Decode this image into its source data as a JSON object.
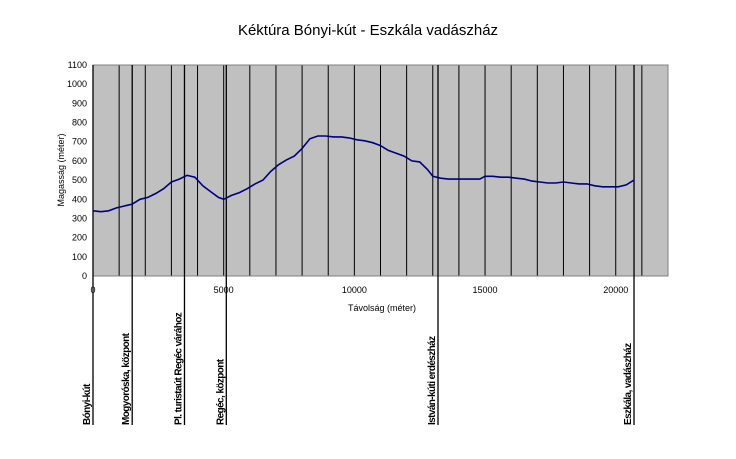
{
  "chart_data": {
    "type": "line",
    "title": "Kéktúra Bónyi-kút - Eszkála vadászház",
    "xlabel": "Távolság (méter)",
    "ylabel": "Magasság (méter)",
    "xlim": [
      0,
      22000
    ],
    "ylim": [
      0,
      1100
    ],
    "xticks": [
      "0",
      "5000",
      "10000",
      "15000",
      "20000"
    ],
    "yticks": [
      "0",
      "100",
      "200",
      "300",
      "400",
      "500",
      "600",
      "700",
      "800",
      "900",
      "1000",
      "1100"
    ],
    "grid": true,
    "background_color": "#c0c0c0",
    "line_color": "#000080",
    "series": [
      {
        "x": [
          0,
          300,
          600,
          900,
          1200,
          1500,
          1800,
          2100,
          2400,
          2700,
          3000,
          3300,
          3600,
          3900,
          4200,
          4500,
          4800,
          5000,
          5300,
          5600,
          5900,
          6200,
          6500,
          6800,
          7100,
          7400,
          7700,
          8000,
          8300,
          8600,
          8900,
          9200,
          9500,
          9800,
          10100,
          10400,
          10700,
          11000,
          11300,
          11600,
          11900,
          12200,
          12500,
          12800,
          13000,
          13300,
          13600,
          13900,
          14200,
          14500,
          14800,
          15000,
          15300,
          15600,
          15900,
          16200,
          16500,
          16800,
          17100,
          17400,
          17700,
          18000,
          18300,
          18600,
          18900,
          19200,
          19500,
          19800,
          20100,
          20400,
          20700
        ],
        "y": [
          340,
          335,
          340,
          355,
          365,
          375,
          400,
          410,
          430,
          455,
          490,
          505,
          525,
          515,
          470,
          440,
          410,
          400,
          420,
          435,
          455,
          480,
          500,
          545,
          580,
          605,
          625,
          665,
          715,
          730,
          730,
          725,
          725,
          720,
          710,
          705,
          695,
          680,
          655,
          640,
          625,
          600,
          595,
          555,
          520,
          510,
          505,
          505,
          505,
          505,
          505,
          520,
          520,
          515,
          515,
          510,
          505,
          495,
          490,
          485,
          485,
          490,
          485,
          480,
          480,
          470,
          465,
          465,
          465,
          475,
          500
        ]
      }
    ],
    "waypoints": [
      {
        "label": "Bónyi-kút",
        "x": 0
      },
      {
        "label": "Mogyoróska, központ",
        "x": 1500
      },
      {
        "label": "Pl. turistaút Regéc várához",
        "x": 3500
      },
      {
        "label": "Regéc, központ",
        "x": 5100
      },
      {
        "label": "István-kúti erdészház",
        "x": 13200
      },
      {
        "label": "Eszkála, vadászház",
        "x": 20700
      }
    ]
  }
}
